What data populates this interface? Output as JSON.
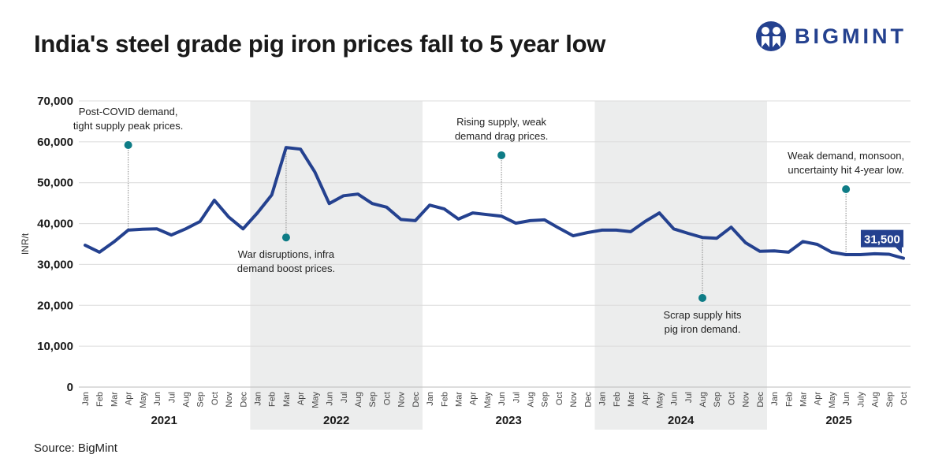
{
  "title": "India's steel grade pig iron prices fall to 5 year low",
  "source": "Source: BigMint",
  "logo": {
    "text": "BIGMINT",
    "color": "#24418f"
  },
  "chart_data": {
    "type": "line",
    "title": "India's steel grade pig iron prices fall to 5 year low",
    "ylabel": "INR/t",
    "xlabel": "",
    "ylim": [
      0,
      70000
    ],
    "yticks": [
      0,
      10000,
      20000,
      30000,
      40000,
      50000,
      60000,
      70000
    ],
    "ytick_labels": [
      "0",
      "10,000",
      "20,000",
      "30,000",
      "40,000",
      "50,000",
      "60,000",
      "70,000"
    ],
    "grid": true,
    "line_color": "#24418f",
    "annotation_color": "#0e7c86",
    "shade_color": "#eceded",
    "years": [
      {
        "label": "2021",
        "months": [
          "Jan",
          "Feb",
          "Mar",
          "Apr",
          "May",
          "Jun",
          "Jul",
          "Aug",
          "Sep",
          "Oct",
          "Nov",
          "Dec"
        ],
        "shaded": false
      },
      {
        "label": "2022",
        "months": [
          "Jan",
          "Feb",
          "Mar",
          "Apr",
          "May",
          "Jun",
          "Jul",
          "Aug",
          "Sep",
          "Oct",
          "Nov",
          "Dec"
        ],
        "shaded": true
      },
      {
        "label": "2023",
        "months": [
          "Jan",
          "Feb",
          "Mar",
          "Apr",
          "May",
          "Jun",
          "Jul",
          "Aug",
          "Sep",
          "Oct",
          "Nov",
          "Dec"
        ],
        "shaded": false
      },
      {
        "label": "2024",
        "months": [
          "Jan",
          "Feb",
          "Mar",
          "Apr",
          "May",
          "Jun",
          "Jul",
          "Aug",
          "Sep",
          "Oct",
          "Nov",
          "Dec"
        ],
        "shaded": true
      },
      {
        "label": "2025",
        "months": [
          "Jan",
          "Feb",
          "Mar",
          "Apr",
          "May",
          "Jun",
          "July",
          "Aug",
          "Sep",
          "Oct"
        ],
        "shaded": false
      }
    ],
    "values": [
      34700,
      33000,
      35500,
      38400,
      38600,
      38700,
      37200,
      38700,
      40500,
      45700,
      41600,
      38700,
      42600,
      47000,
      58600,
      58200,
      52600,
      44900,
      46800,
      47200,
      44900,
      44000,
      41000,
      40700,
      44500,
      43600,
      41100,
      42600,
      42200,
      41800,
      40100,
      40700,
      40900,
      38900,
      37000,
      37800,
      38400,
      38400,
      38000,
      40500,
      42600,
      38700,
      37600,
      36600,
      36400,
      39100,
      35300,
      33200,
      33300,
      33000,
      35600,
      34900,
      33000,
      32400,
      32400,
      32600,
      32500,
      31500
    ],
    "last_value_label": "31,500",
    "annotations": [
      {
        "period": "Apr 2021",
        "index": 3,
        "marker_value": 59200,
        "text_position": "above",
        "lines": [
          "Post-COVID demand,",
          "tight supply peak prices."
        ]
      },
      {
        "period": "Mar 2022",
        "index": 14,
        "marker_value": 36600,
        "text_position": "below",
        "lines": [
          "War disruptions, infra",
          "demand boost prices."
        ]
      },
      {
        "period": "Jun 2023",
        "index": 29,
        "marker_value": 56700,
        "text_position": "above",
        "lines": [
          "Rising supply, weak",
          "demand drag prices."
        ]
      },
      {
        "period": "Aug 2024",
        "index": 43,
        "marker_value": 21800,
        "text_position": "below",
        "lines": [
          "Scrap supply hits",
          "pig iron demand."
        ]
      },
      {
        "period": "Jun 2025",
        "index": 53,
        "marker_value": 48400,
        "text_position": "above",
        "lines": [
          "Weak demand, monsoon,",
          "uncertainty hit 4-year low."
        ]
      }
    ]
  }
}
